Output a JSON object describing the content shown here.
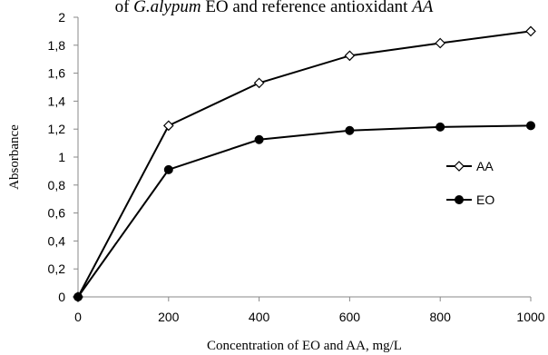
{
  "chart_data": {
    "type": "line",
    "title_line2_parts": [
      "of ",
      "G.alypum",
      " EO and reference antioxidant ",
      "AA"
    ],
    "xlabel": "Concentration of EO and AA, mg/L",
    "ylabel": "Absorbance",
    "x": [
      0,
      200,
      400,
      600,
      800,
      1000
    ],
    "xlim": [
      0,
      1000
    ],
    "ylim": [
      0,
      2
    ],
    "x_ticks": [
      "0",
      "200",
      "400",
      "600",
      "800",
      "1000"
    ],
    "y_ticks": [
      "0",
      "0,2",
      "0,4",
      "0,6",
      "0,8",
      "1",
      "1,2",
      "1,4",
      "1,6",
      "1,8",
      "2"
    ],
    "grid": false,
    "legend_position": "right-center",
    "series": [
      {
        "name": "AA",
        "marker": "diamond-open",
        "color": "#000000",
        "values": [
          0,
          1.225,
          1.53,
          1.725,
          1.815,
          1.9
        ]
      },
      {
        "name": "EO",
        "marker": "circle-filled",
        "color": "#000000",
        "values": [
          0,
          0.91,
          1.125,
          1.19,
          1.215,
          1.225
        ]
      }
    ]
  }
}
